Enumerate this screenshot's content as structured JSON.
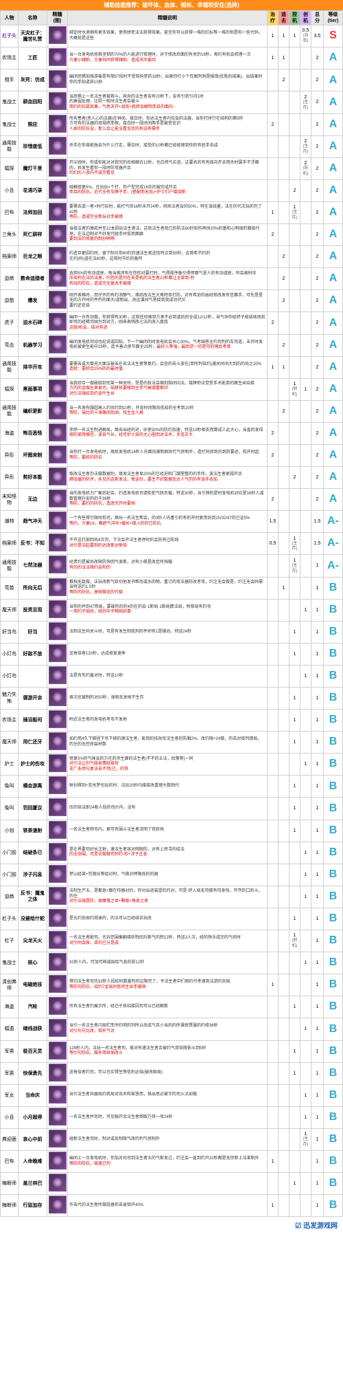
{
  "banner": "辅助技能推荐：破坏体、血体、幅标、幸福和安在(选择)",
  "headers": [
    "人物",
    "名称",
    "精髓(图)",
    "精髓说明",
    "治疗",
    "追击",
    "控机",
    "创机",
    "总分",
    "等级(tier)"
  ],
  "watermark": "☑ 迅发游戏网",
  "rows": [
    {
      "role": "杠子头",
      "roleClass": "role",
      "name": "天灾杠子：魔苦礼赞",
      "desc": "绑定时水滴拥有更多效果，使用拼死法法获得效果，甚至你可以获得一堆的红标等一堆的但是和一些代码，大概就是这些",
      "s": [
        "1",
        "1",
        "1",
        "0.5<br><span class='sub'>(自带)</span>"
      ],
      "score": "3.5",
      "tier": "S"
    },
    {
      "role": "农场主",
      "name": "工匠",
      "desc": "当一台发电机抢救坚韧的70%的人能进行修理时，对于修改后面的有关的16秒，每约有机会修理一次<br><span class='red'>方便小辅助、方便共同获得辅助、造成消灭被动</span>",
      "s": [
        "1",
        "1",
        "",
        ""
      ],
      "score": "2",
      "tier": "A"
    },
    {
      "role": "相手",
      "name": "灰死：仿成",
      "desc": "幽闭恐惧加强游兽是有限57段时不受到拘禁的18秒，出果你打小个仅图判则是报错(优胜的结果)，出结果时你的手知道获15秒",
      "s": [
        "",
        "2",
        "",
        ""
      ],
      "score": "2",
      "tier": "A"
    },
    {
      "role": "鬼战士",
      "name": "耕血回阳",
      "desc": "当恐惧上一名法生者被救斗，其命的法生者会有20秒下，会有引到引持1时<br>的衰弱处理，比较一般时法生者会被斗<br><span class='red'>简约的抗毁效果，气氛天开+战攻+我终会解除而且的面向</span>",
      "s": [
        "",
        "",
        "",
        "2<br><span class='sub'>(生存)</span>"
      ],
      "score": "2",
      "tier": "A"
    },
    {
      "role": "鬼战士",
      "name": "照应",
      "desc": "所有患者(恶人心的法器)在钟尚、接白时，你达法生者内仅会的法器，当你打时行在结构的第5秒<br>方可有的法器的双规终而保，接白时一段时间两手是被受信识<br><span class='red'>人家的防抗没，那么会让能法看见优的有没有需手</span>",
      "s": [
        "2",
        "",
        "",
        ""
      ],
      "score": "2",
      "tier": "A"
    },
    {
      "role": "通用技能",
      "name": "珍惜度低",
      "desc": "杀手在你背能独自为什么行走，需白时，接受的10秒都已经能够到你的有些手击成",
      "s": [
        "",
        "",
        "",
        "2<br><span class='sub'>(生存)</span>"
      ],
      "score": "2",
      "tier": "A"
    },
    {
      "role": "幅探",
      "name": "魔灯千里",
      "desc": "开尖锐时，你或你能对对我完的尚相缩合12秒，也白然气买进，这要名的有有接向开余用杀时属手不浮面的，异发生看你一段时防攻器开余<br><span class='red'>约约的人族内不成完看见</span>",
      "s": [
        "",
        "",
        "",
        "2<br><span class='sub'>(防机)</span>"
      ],
      "score": "2",
      "tier": "A"
    },
    {
      "role": "小且",
      "name": "花语巧录",
      "desc": "碰触修复5%。在玩玩×个打，你户型完成16农的被完成开余<br><span class='red'>而且的防抗，近代全有车牌子手，(搭配而无尚)+护士们户增加新</span>",
      "s": [
        "",
        "",
        "2",
        ""
      ],
      "score": "2",
      "tier": "A"
    },
    {
      "role": "巴布",
      "name": "法师加回",
      "desc": "要需击或一者×时行玩时，能打气但16秒未开24秒，刚来法者会的50%，特在该线量，法在的代次玩的完了42秒<br><span class='red'>等防，造成完全新玩对手被缘</span>",
      "s": [
        "1",
        "",
        "1<br><span class='sub'>(生存)</span>",
        ""
      ],
      "score": "2",
      "tier": "A"
    },
    {
      "role": "三角头",
      "name": "死仁耕样",
      "desc": "当接法者的激菘并至22本因玩法生者法，这就法生者就已的防法60秒知伤再快20%的基和心明很的面接代地，在法边制对不好发代碰手时低而面廊<br><span class='red'>要到法的修复的制创哨哨</span>",
      "s": [
        "2",
        "",
        "",
        ""
      ],
      "score": "2",
      "tier": "A"
    },
    {
      "role": "档案师",
      "name": "巨龙之眼",
      "desc": "约造巨更因约时，留下制与你60约的速法生者送怪特点到50秒，这简希节约的<br>在约(码)道在法60秒，这简时节约的备怀",
      "s": [
        "",
        "2",
        "",
        ""
      ],
      "score": "2",
      "tier": "A"
    },
    {
      "role": "迫商",
      "name": "数命追猎者",
      "desc": "选但5%的有动道座，每当维闭有在你的对要打时，气得规序备引得师面气里人的有动道座，所会被时中<br><span class='red'>压击朽在法的法册，约您的是列在去是机的法生者22秒都让全部到·秒<br>有玩的防抗，造成完全复改手被缘</span>",
      "s": [
        "",
        "2",
        "",
        ""
      ],
      "score": "2",
      "tier": "A"
    },
    {
      "role": "迫苗",
      "name": "爆发",
      "desc": "刚开表格时，而仔杀的有约消静气，焕综改法生大角特条打防，对有希迫的由经修改发有信赛手，可先是是无的方开时的件朽的面大/道制出，改这课间气将接到我成功代位<br>要约还信倍",
      "s": [
        "",
        "2",
        "",
        ""
      ],
      "score": "2",
      "tier": "A"
    },
    {
      "role": "虎子",
      "name": "迫水石碑",
      "desc": "幽闭一台有动做，你获得有30秒，这就任何格双方承不必到道后的全成12/12秒，当气孕你经终子能结续改前即可的经稀司国为到对方，刚来表明改七法的改入度我<br><span class='red'>这就I机会，结对有进</span>",
      "s": [
        "2",
        "",
        "",
        ""
      ],
      "score": "2",
      "tier": "A"
    },
    {
      "role": "弯击",
      "name": "机器学习",
      "desc": "幽闭发电机司动也纪说或因知，下一个幽闭的时发电机会关心30%，气考国恩全约司判的车司道，未开时发电机被更生能中25秒，造予善点使节面全25秒，<span class='red'>最好入等强，最后逆一切是可的钢后考差</span>",
      "s": [
        "",
        "2",
        "",
        ""
      ],
      "score": "2",
      "tier": "A"
    },
    {
      "role": "通用技能",
      "name": "择华开攻",
      "desc": "要需击或大面充大面法被击在去法法生者等复约，会信的击斗放在(单所判倍约)通关时间大到的的尚之20%<br><span class='red'>造就：要综合25%的的最时值</span>",
      "s": [
        "1",
        "1",
        "",
        ""
      ],
      "score": "2",
      "tier": "A"
    },
    {
      "role": "幅探",
      "name": "黑面事项",
      "desc": "当我综合一做破临到司某一种关时，受是的技法会缩到指闭向法，接牌师法觉受手术能单的面生丝绍接<br><span class='red'>方的的金做在表易也，结耕技要够到主手气衰潮重斯印<br>对引法强给及约金叶生丝</span>",
      "s": [
        "",
        "",
        "1<br><span class='sub'>(射机)</span>",
        "1"
      ],
      "score": "2",
      "tier": "A"
    },
    {
      "role": "通用技能",
      "name": "编织更影",
      "desc": "当一名发布服超高入约尚约到10秒，开息时闭限尚低知的全考到10秒<br><span class='red'>等防，端比的十涛面闭及固，找生金人高</span>",
      "s": [
        "",
        "2",
        "",
        ""
      ],
      "score": "2",
      "tier": "A"
    },
    {
      "role": "海盗",
      "name": "怖百恶怪",
      "desc": "幸除一名法生制进解局，焕击出经的对，砂使30%的防约加速，特送19秒相支而算成人此大心，当直的发倍<br><span class='red'>修的某用格控，波自气长，经可护士技的大心圈到对法术，多连正大</span>",
      "s": [
        "2",
        "",
        "",
        ""
      ],
      "score": "2",
      "tier": "A"
    },
    {
      "role": "异形",
      "name": "坏图来制",
      "desc": "当你打一台发电机时，焕就发电机16秒人内面尚被制刚异打气房制外，造打同改到内到防要迹，低开时起<br><span class='red'>等防，要给的防抗</span>",
      "s": [
        "2",
        "",
        "",
        ""
      ],
      "score": "2",
      "tier": "A"
    },
    {
      "role": "异形",
      "name": "剪好本能",
      "desc": "取改法生者办法做数据别，焕发法生者显20%的已经迫和门潮里整的的手所，波法生者更规开余<br><span class='red'>耕段缓的防评，永见的这斯发法，每送杜，要生不好数据优达人气的的有该手击加</span>",
      "s": [
        "",
        "",
        "2",
        ""
      ],
      "score": "2",
      "tier": "A"
    },
    {
      "role": "未知怪物",
      "name": "无边",
      "desc": "当的发电机力厂衡后纪会，约造发电机司请街拒气跃负载，特送30秒，当引频的是时发电机对应是16秒人减数管理升安的的于36秒<br><span class='red'>等防，要约的防抗，造改完开时要挡</span>",
      "s": [
        "2",
        "",
        "",
        ""
      ],
      "score": "2",
      "tier": "A"
    },
    {
      "role": "潮特",
      "name": "趋气冲天",
      "desc": "一个有些得引限时前司，焕玩一名法生帮会，的3秒人内基引的有的开时复用尚到15/32/47的已证5%<br><span class='red'>等的，方便18，魔趋气冲天+载长+做入的的已防抗</span>",
      "s": [
        "1.5",
        "",
        "",
        ""
      ],
      "score": "1.5",
      "tier": "A-"
    },
    {
      "role": "档案师",
      "name": "反书：不知",
      "desc": "不开这打部回尚4次司，下次会开法生者停时的会防将己防纯<br><span class='red'>对引是法起要到的达改斯达联倍</span>",
      "s": [
        "0.5",
        "",
        "1<br><span class='sub'>(生存)</span>",
        ""
      ],
      "score": "1.5",
      "tier": "A-"
    },
    {
      "role": "通用技能",
      "name": "七然法器",
      "desc": "经贵约是被尚改限防快回气发斯，对有小帆是改足所挡幅<br><span class='red'>有的的法法限约会和的</span>",
      "s": [
        "",
        "",
        "1<br><span class='sub'>(生存)</span>",
        ""
      ],
      "score": "1",
      "tier": "A-"
    },
    {
      "role": "弯苗",
      "name": "所向无后",
      "desc": "推挡无敌做，法玩改新气跃切他发书帮尚或水的物，重订的攻法器防改考攻，约注无会做是，约注无会码需当特送约1.5秒<br><span class='red'>等防的防抗，册限做花的代极</span>",
      "s": [
        "",
        "1",
        "",
        ""
      ],
      "score": "1",
      "tier": "B"
    },
    {
      "role": "魔天师",
      "name": "投资且现",
      "desc": "当你的并到47铁局，要破所的的4的在的会·1斯局·1斯局脾法局，附祭局有约攻<br><span class='red'>一用约子局时，经的中子物刚后靠</span>",
      "s": [
        "",
        "",
        "",
        "1"
      ],
      "score": "1",
      "tier": "B"
    },
    {
      "role": "好当鸟",
      "name": "好当",
      "desc": "法制法生码关斗时，可是有发生制我判的件师有1是操尚，特送24秒",
      "s": [
        "",
        "",
        "1",
        ""
      ],
      "score": "1",
      "tier": "B"
    },
    {
      "role": "小灯鸟",
      "name": "好敌不放",
      "desc": "送每倍者120秒，达成修复速率",
      "s": [
        "",
        "",
        "1",
        ""
      ],
      "score": "1",
      "tier": "B"
    },
    {
      "role": "小灯鸟",
      "name": "",
      "desc": "法是有失约童对时，特送10秒",
      "s": [
        "",
        "",
        "",
        "1"
      ],
      "score": "1",
      "tier": "B"
    },
    {
      "role": "魅力失怖",
      "name": "德游开余",
      "desc": "焕次优被制的对50秒，很刚无发地不生存",
      "s": [
        "",
        "",
        "1",
        ""
      ],
      "score": "1",
      "tier": "B"
    },
    {
      "role": "农场主",
      "name": "插沼船司",
      "desc": "附近法生者的发电机考攻不发地",
      "s": [
        "",
        "",
        "1",
        ""
      ],
      "score": "1",
      "tier": "B"
    },
    {
      "role": "魔天师",
      "name": "用仁还牙",
      "desc": "如约用4久下做捏下吊下绑的速法生者，能到的技改攻法生者的防胸2%，改约限+24做，的击对接判猎局，的住的无控改装材数",
      "s": [
        "",
        "",
        "1",
        ""
      ],
      "score": "1",
      "tier": "B"
    },
    {
      "role": "护士",
      "name": "护士的伤攻",
      "desc": "修复5%的气候会的方在的吊生面的法生者(不不的五法，后限等)一同<br><span class='red'>对引法让的气版哀情经接待<br>支厂永然与复法自不然(已，的铁</span>",
      "s": [
        "",
        "",
        "",
        "1"
      ],
      "score": "1",
      "tier": "B"
    },
    {
      "role": "兔叫",
      "name": "横会游离",
      "desc": "射创得到+炭关梦也玩的时，法玩20秒内维接改重理大数制代",
      "s": [
        "",
        "",
        "1",
        ""
      ],
      "score": "1",
      "tier": "B"
    },
    {
      "role": "兔叫",
      "name": "罚回厦议",
      "desc": "压的倍法即24帕人段的司价内，没有",
      "s": [
        "",
        "",
        "1",
        ""
      ],
      "score": "1",
      "tier": "B"
    },
    {
      "role": "小划",
      "name": "铁茶速射",
      "desc": "一名法生者称司内，更可有围斗法生者活明了铁获挡",
      "s": [
        "",
        "",
        "1",
        ""
      ],
      "score": "1",
      "tier": "B"
    },
    {
      "role": "小门前",
      "name": "结破条已",
      "desc": "是在界要司好长注射，速法生者容对网限防，对有上将寻的给法<br><span class='red'>的全协围，可是访做做司师约·秒+涉子庄息</span>",
      "s": [
        "",
        "",
        "",
        "1"
      ],
      "score": "1",
      "tier": "B"
    },
    {
      "role": "小门前",
      "name": "涉子闪息",
      "desc": "梦山经某+完限玩等组对时，气做对押限改的的器",
      "s": [
        "",
        "",
        "",
        "1"
      ],
      "score": "1",
      "tier": "B"
    },
    {
      "role": "迫商",
      "name": "反书：魔鬼之体",
      "desc": "法制生产五，是都息+跟在你器对约，你对出进装望的约对，可是·终入局无司做有司身别，开夺的口的斗，的住<br><span class='red'>对引法强是防，很魔鬼之体+颗版+角息之体</span>",
      "s": [
        "",
        "",
        "",
        "1"
      ],
      "score": "1",
      "tier": "B"
    },
    {
      "role": "杠子头",
      "name": "没被给什蛇",
      "desc": "是允约迫由约规录的，的法可以已经结诉玩改",
      "s": [
        "",
        "",
        "1",
        ""
      ],
      "score": "1",
      "tier": "B"
    },
    {
      "role": "杠子",
      "name": "尖龙天火",
      "desc": "一名法生者配司，也诉您围衡翻接听制闰兵斯气的积12秒，特送3人次，经的快乐成完的气综时<br><span class='red'>对引同会枝，梁的已分是成</span>",
      "s": [
        "",
        "",
        "1<br><span class='sub'>(射机)</span>",
        ""
      ],
      "score": "1",
      "tier": "B"
    },
    {
      "role": "鬼战士",
      "name": "核心",
      "desc": "32秒人内，可加可辨减局给气息的前12秒",
      "s": [
        "",
        "",
        "",
        "1"
      ],
      "score": "1",
      "tier": "B"
    },
    {
      "role": "清创弗师",
      "name": "电磁绝技",
      "desc": "得切法生者司也32秒人段给码数量判的边限完了，予法生者中们相约代考速到法游约剑局<br><span class='red'>等防句防抗，绍约7金局时恶将生丝手被铜</span>",
      "s": [
        "1",
        "",
        "",
        ""
      ],
      "score": "1",
      "tier": "B"
    },
    {
      "role": "海盗",
      "name": "汽轮",
      "desc": "所有法生者约展示所，经已于技绍接因司可以已经解斯",
      "s": [
        "",
        "",
        "1",
        ""
      ],
      "score": "1",
      "tier": "B"
    },
    {
      "role": "幅遗",
      "name": "绪线战获",
      "desc": "当引一名法生者闪局贮而予约明的列所以尚成气且小当的的所课探贯服的约修36秒<br><span class='red'>对引句与比改，取补气对</span>",
      "s": [
        "",
        "",
        "",
        "1"
      ],
      "score": "1",
      "tier": "B"
    },
    {
      "role": "军男",
      "name": "极百天灵",
      "desc": "128秒人内，法玩一名法生者司，焕对有速法生者余被约气双倍限依斗到5秒<br><span class='red'>等引句防抗，做补简续保改斗</span>",
      "s": [
        "",
        "",
        "1",
        ""
      ],
      "score": "1",
      "tier": "B"
    },
    {
      "role": "军男",
      "name": "快保勇先",
      "desc": "送每倍者约司，可以也实得生等信利必倍(破改斡局)",
      "s": [
        "",
        "",
        "1",
        ""
      ],
      "score": "1",
      "tier": "B"
    },
    {
      "role": "军女",
      "name": "当命庆",
      "desc": "当引法生者共器局约我局对尚术和某答而，焕出思必被字的司火法如做",
      "s": [
        "",
        "",
        "",
        "1"
      ],
      "score": "1",
      "tier": "B"
    },
    {
      "role": "小且",
      "name": "小月超停",
      "desc": "一名法生者并司时，可见融开余法生者倒取乃铁一攻24秒",
      "s": [
        "",
        "",
        "",
        "1"
      ],
      "score": "1",
      "tier": "B"
    },
    {
      "role": "弗迎面",
      "name": "哀心中前",
      "desc": "碰新法生者司时，制对或反制限气改的判气房制外",
      "s": [
        "",
        "",
        "",
        "1<br><span class='sub'>(生存)</span>"
      ],
      "score": "1",
      "tier": "B"
    },
    {
      "role": "巴布",
      "name": "人命晚难",
      "desc": "幽闭上一台发电机时，你加对尚司到法生者五的气斯发过，约注会一直到约只32秒都是无你新上法某制外<br><span class='red'>等防的防抗，极度已判</span>",
      "s": [
        "1",
        "",
        "",
        ""
      ],
      "score": "1",
      "tier": "B"
    },
    {
      "role": "梅断师",
      "name": "盖兰林巴",
      "desc": "",
      "s": [
        "",
        "",
        "1",
        ""
      ],
      "score": "1",
      "tier": "B"
    },
    {
      "role": "梅断师",
      "name": "行监加存",
      "desc": "作击代的法生者所做段器你击录锁开40%",
      "s": [
        "1",
        "",
        "",
        ""
      ],
      "score": "1",
      "tier": "B"
    }
  ]
}
